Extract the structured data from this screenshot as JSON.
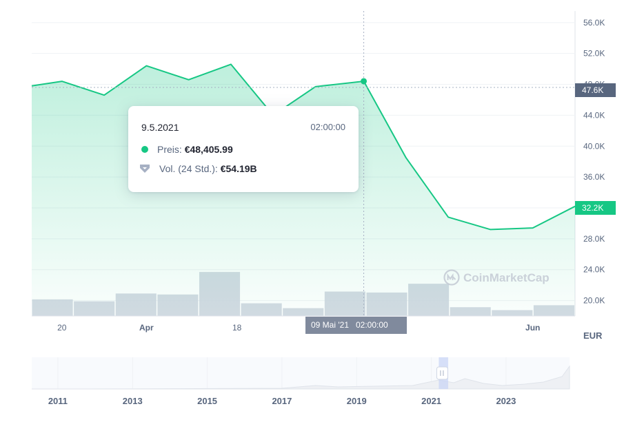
{
  "chart_data": {
    "type": "line",
    "currency": "EUR",
    "y_ticks": [
      "56.0K",
      "52.0K",
      "48.0K",
      "44.0K",
      "40.0K",
      "36.0K",
      "32.0K",
      "28.0K",
      "24.0K",
      "20.0K"
    ],
    "x_ticks": [
      {
        "label": "20",
        "bold": false
      },
      {
        "label": "Apr",
        "bold": true
      },
      {
        "label": "18",
        "bold": false
      },
      {
        "label": "Jun",
        "bold": true
      }
    ],
    "ylim": [
      18000,
      57500
    ],
    "series": [
      {
        "name": "Preis",
        "color": "#16c784",
        "x": [
          "2021-03-15",
          "2021-03-20",
          "2021-03-27",
          "2021-04-03",
          "2021-04-10",
          "2021-04-17",
          "2021-04-24",
          "2021-05-01",
          "2021-05-09",
          "2021-05-16",
          "2021-05-23",
          "2021-05-30",
          "2021-06-06",
          "2021-06-13"
        ],
        "values": [
          47800,
          48400,
          46600,
          50400,
          48600,
          50600,
          44000,
          47700,
          48405.99,
          38500,
          30800,
          29200,
          29400,
          32200
        ]
      }
    ],
    "volume_bars": [
      21200,
      21000,
      21800,
      21700,
      24000,
      20800,
      20300,
      22000,
      21900,
      22800,
      20400,
      20100,
      20600
    ],
    "current_price_label": "32.2K",
    "crosshair_price_label": "47.6K",
    "crosshair_x_label": "09 Mai '21   02:00:00",
    "tooltip": {
      "date": "9.5.2021",
      "time": "02:00:00",
      "price_label": "Preis:",
      "price_value": "€48,405.99",
      "volume_label": "Vol. (24 Std.):",
      "volume_value": "€54.19B"
    },
    "navigator_years": [
      "2011",
      "2013",
      "2015",
      "2017",
      "2019",
      "2021",
      "2023"
    ],
    "watermark": "CoinMarketCap"
  },
  "colors": {
    "accent": "#16c784",
    "crosshair_label_bg": "#808a9d",
    "price_label_bg": "#16c784",
    "volume_bar": "#cfd6e0",
    "grid": "#eff2f5"
  }
}
